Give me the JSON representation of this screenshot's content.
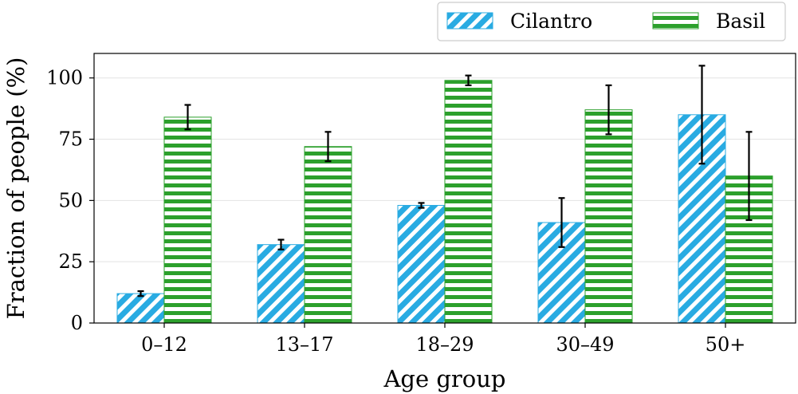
{
  "chart_data": {
    "type": "bar",
    "title": "",
    "xlabel": "Age group",
    "ylabel": "Fraction of people (%)",
    "categories": [
      "0–12",
      "13–17",
      "18–29",
      "30–49",
      "50+"
    ],
    "ylim": [
      0,
      110
    ],
    "yticks": [
      0,
      25,
      50,
      75,
      100
    ],
    "grid": "horizontal",
    "legend_position": "top-right, outside",
    "series": [
      {
        "name": "Cilantro",
        "color": "#29abe2",
        "pattern": "diagonal-hatch",
        "values": [
          12,
          32,
          48,
          41,
          85
        ],
        "error": [
          1,
          2,
          1,
          10,
          20
        ]
      },
      {
        "name": "Basil",
        "color": "#2ca02c",
        "pattern": "horizontal-hatch",
        "values": [
          84,
          72,
          99,
          87,
          60
        ],
        "error": [
          5,
          6,
          2,
          10,
          18
        ]
      }
    ]
  }
}
